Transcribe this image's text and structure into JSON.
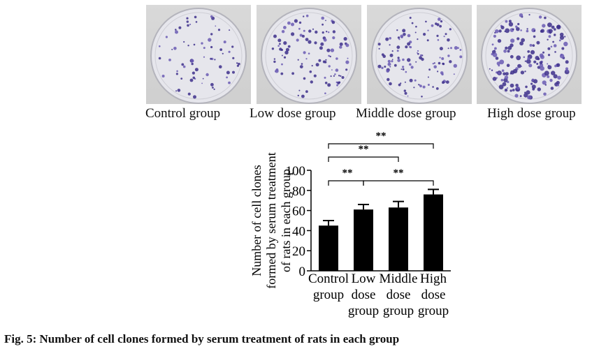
{
  "plates": [
    {
      "label": "Control group",
      "density": 70
    },
    {
      "label": "Low dose group",
      "density": 105
    },
    {
      "label": "Middle dose group",
      "density": 120
    },
    {
      "label": "High dose group",
      "density": 175
    }
  ],
  "chart_data": {
    "type": "bar",
    "categories": [
      "Control group",
      "Low dose group",
      "Middle dose group",
      "High dose group"
    ],
    "tick_lines": [
      [
        "Control",
        "group"
      ],
      [
        "Low",
        "dose",
        "group"
      ],
      [
        "Middle",
        "dose",
        "group"
      ],
      [
        "High",
        "dose",
        "group"
      ]
    ],
    "values": [
      45,
      61,
      63,
      76
    ],
    "errors": [
      5,
      5,
      6,
      5
    ],
    "ylabel_lines": [
      "Number of cell clones",
      "formed by serum treatment",
      "of rats in each group"
    ],
    "ylim": [
      0,
      100
    ],
    "yticks": [
      0,
      20,
      40,
      60,
      80,
      100
    ],
    "bar_color": "#000000",
    "significance": [
      {
        "from": 0,
        "to": 1,
        "label": "**"
      },
      {
        "from": 1,
        "to": 3,
        "label": "**"
      },
      {
        "from": 0,
        "to": 2,
        "label": "**"
      },
      {
        "from": 0,
        "to": 3,
        "label": "**"
      }
    ]
  },
  "caption": "Fig. 5: Number of cell clones formed by serum treatment of rats in each group"
}
